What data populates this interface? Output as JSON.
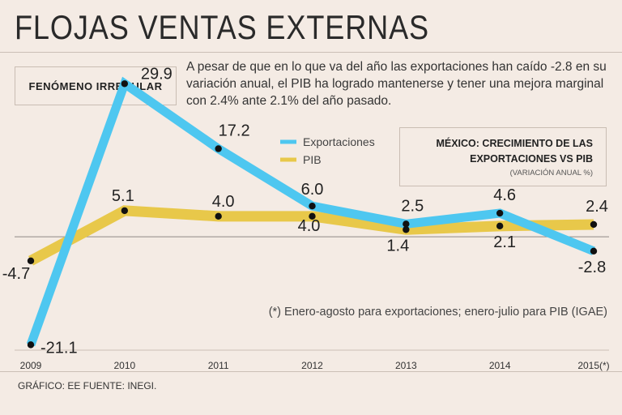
{
  "header": {
    "title": "FLOJAS VENTAS EXTERNAS"
  },
  "tag": "FENÓMENO IRREGULAR",
  "intro": "A pesar de que en lo que va del año las exportaciones han caído -2.8 en su variación anual, el PIB ha logrado mantenerse y tener una mejora marginal con 2.4% ante 2.1% del año pasado.",
  "chart_box": {
    "title": "MÉXICO: CRECIMIENTO DE LAS EXPORTACIONES VS PIB",
    "subtitle": "(VARIACIÓN ANUAL %)"
  },
  "note": "(*) Enero-agosto para exportaciones; enero-julio para PIB (IGAE)",
  "credit": "GRÁFICO: EE  FUENTE: INEGI.",
  "chart_data": {
    "type": "line",
    "title": "MÉXICO: CRECIMIENTO DE LAS EXPORTACIONES VS PIB",
    "categories": [
      "2009",
      "2010",
      "2011",
      "2012",
      "2013",
      "2014",
      "2015(*)"
    ],
    "ylim": [
      -25,
      32
    ],
    "series": [
      {
        "name": "Exportaciones",
        "color": "#4ec7f0",
        "values": [
          -21.1,
          29.9,
          17.2,
          6.0,
          2.5,
          4.6,
          -2.8
        ],
        "labels": [
          "-21.1",
          "29.9",
          "17.2",
          "6.0",
          "2.5",
          "4.6",
          "-2.8"
        ]
      },
      {
        "name": "PIB",
        "color": "#e8c84a",
        "values": [
          -4.7,
          5.1,
          4.0,
          4.0,
          1.4,
          2.1,
          2.4
        ],
        "labels": [
          "-4.7",
          "5.1",
          "4.0",
          "4.0",
          "1.4",
          "2.1",
          "2.4"
        ]
      }
    ]
  }
}
